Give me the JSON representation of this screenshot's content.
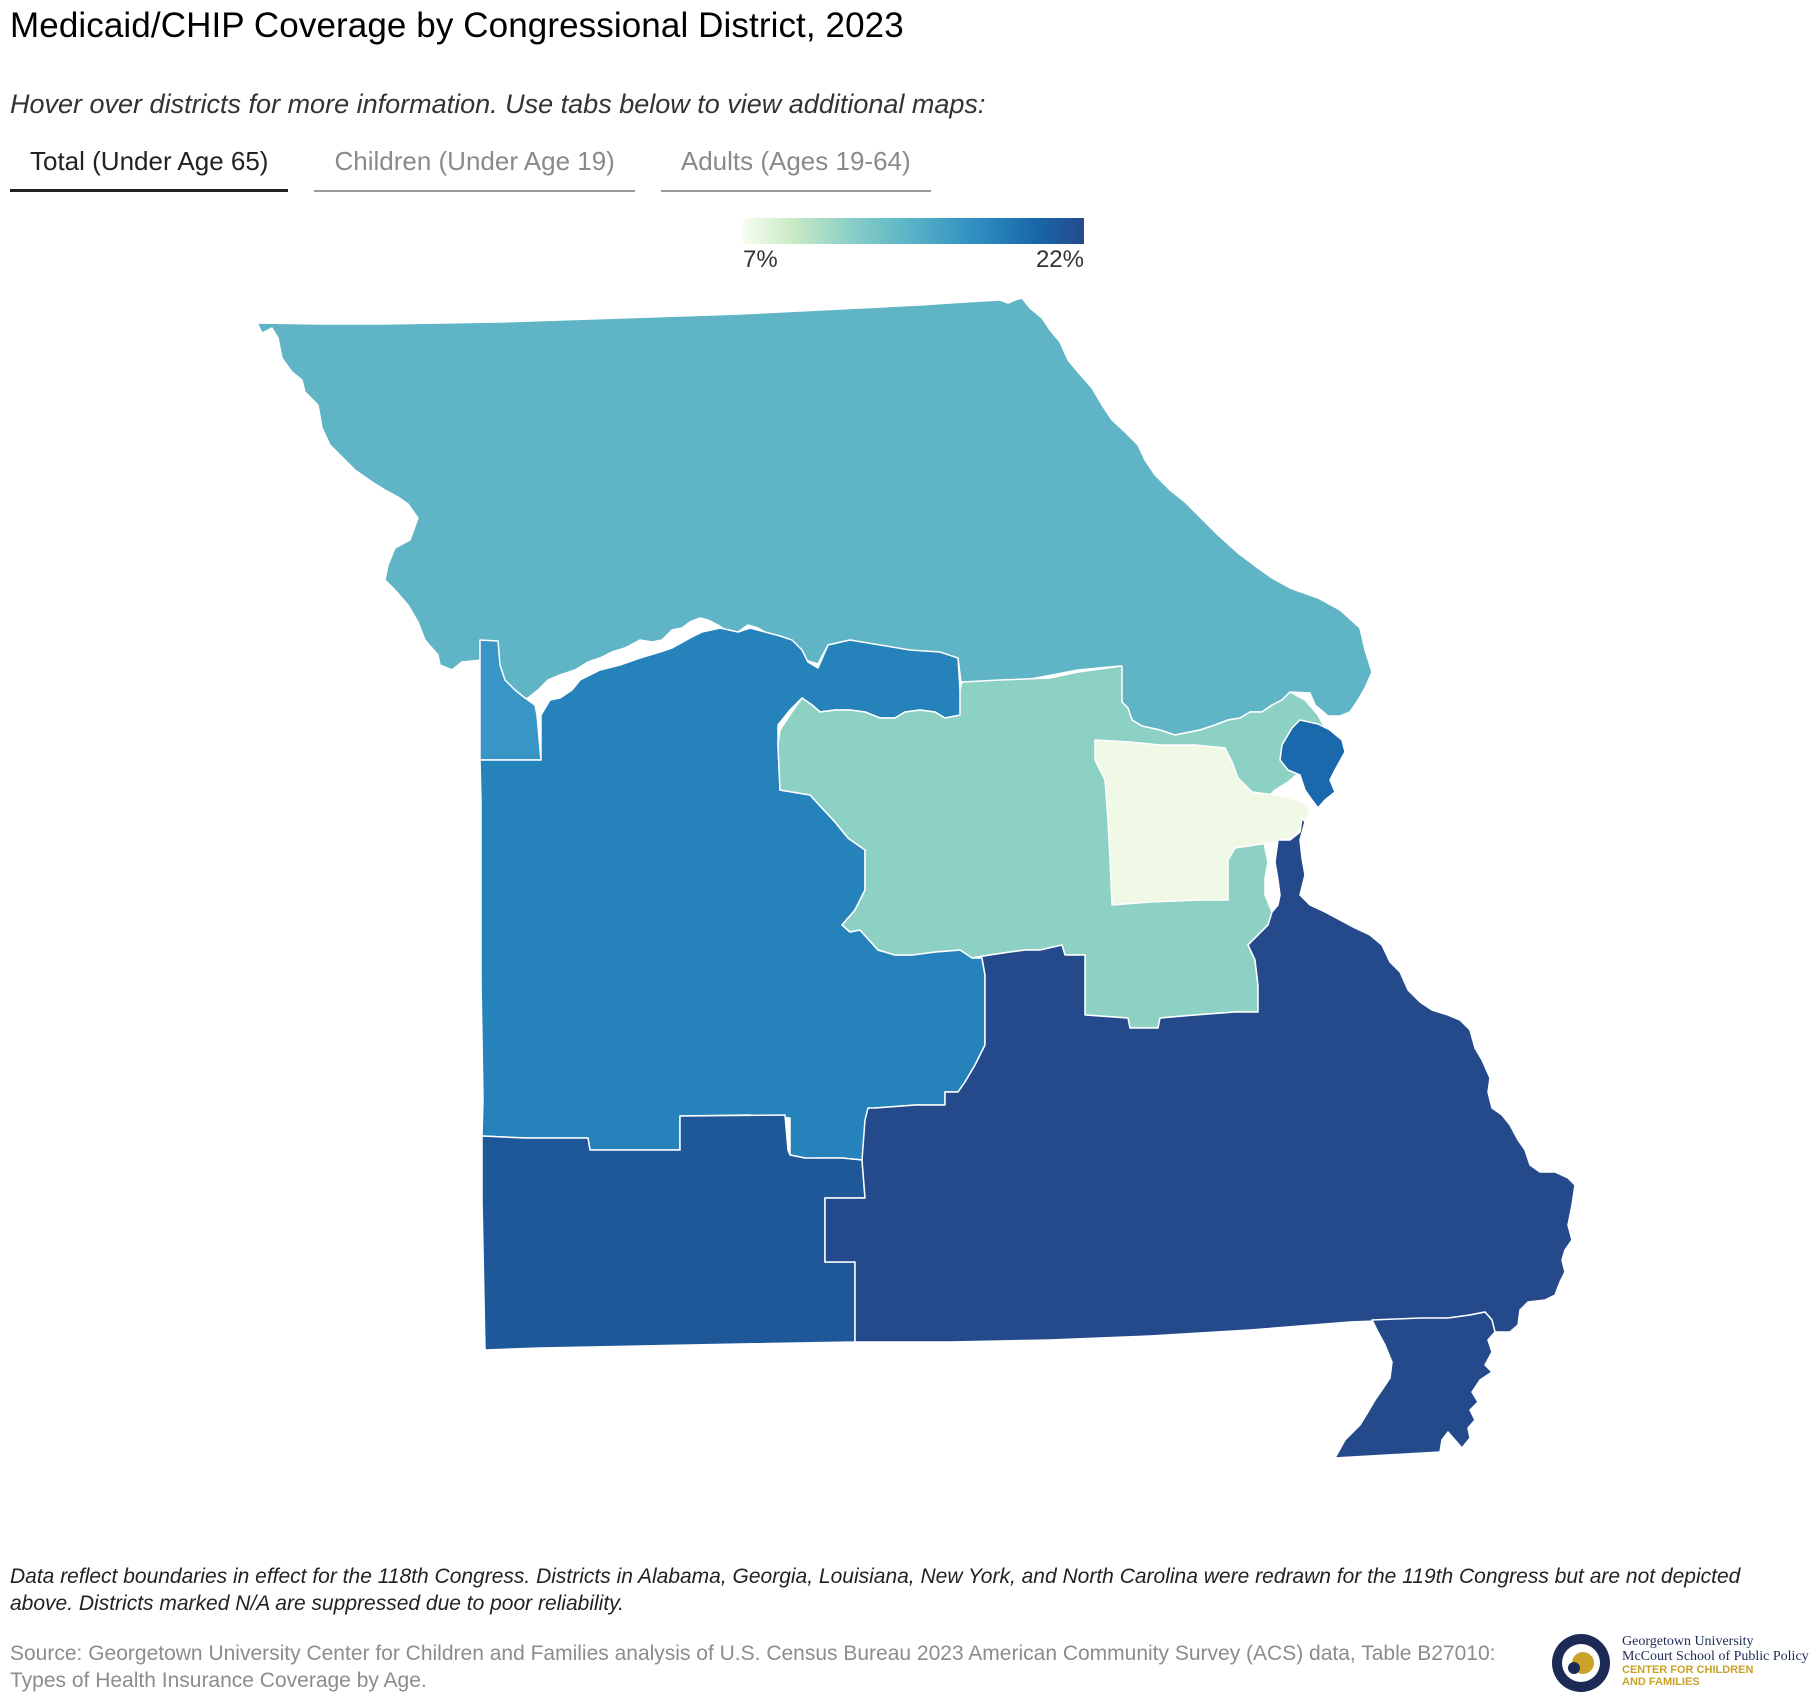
{
  "title": "Medicaid/CHIP Coverage by Congressional District, 2023",
  "subtitle": "Hover over districts for more information. Use tabs below to view additional maps:",
  "tabs": [
    {
      "label": "Total (Under Age 65)",
      "active": true
    },
    {
      "label": "Children (Under Age 19)",
      "active": false
    },
    {
      "label": "Adults (Ages 19-64)",
      "active": false
    }
  ],
  "legend": {
    "min_label": "7%",
    "max_label": "22%",
    "min_value": 7,
    "max_value": 22
  },
  "colors": {
    "d6_north": "#5fb4c6",
    "d4_west": "#2582bb",
    "d5_kc": "#3a95c7",
    "d3_central": "#8dd1c4",
    "d2_stl_county": "#f0f8e6",
    "d1_stl_city": "#1a69ad",
    "d7_southwest": "#1f5899",
    "d8_southeast": "#244a8c"
  },
  "note": "Data reflect boundaries in effect for the 118th Congress. Districts in Alabama, Georgia, Louisiana, New York, and North Carolina were redrawn for the 119th Congress but are not depicted above. Districts marked N/A are suppressed due to poor reliability.",
  "source": "Source: Georgetown University Center for Children and Families analysis of U.S. Census Bureau 2023 American Community Survey (ACS) data, Table B27010: Types of Health Insurance Coverage by Age.",
  "logo": {
    "line1": "Georgetown University",
    "line2": "McCourt School of Public Policy",
    "line3": "CENTER FOR CHILDREN",
    "line4": "AND FAMILIES"
  }
}
